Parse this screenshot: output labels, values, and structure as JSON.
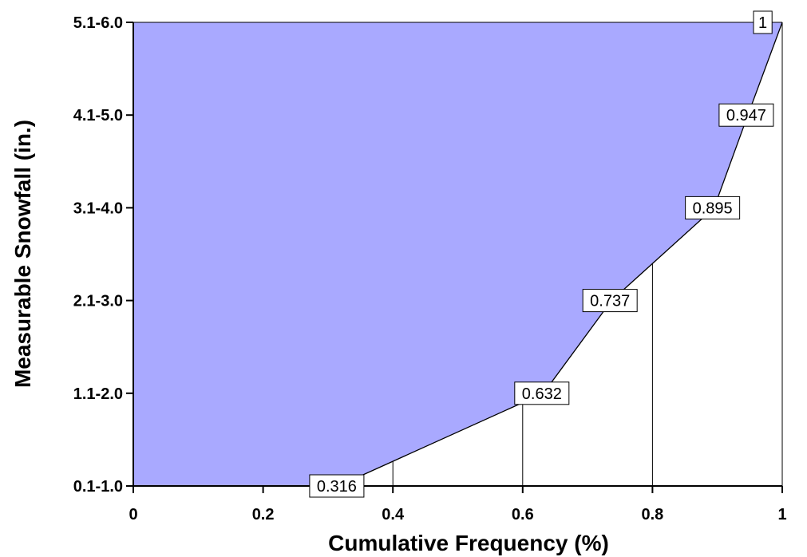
{
  "chart_data": {
    "type": "area",
    "xlabel": "Cumulative Frequency (%)",
    "ylabel": "Measurable Snowfall (in.)",
    "categories": [
      "0.1-1.0",
      "1.1-2.0",
      "2.1-3.0",
      "3.1-4.0",
      "4.1-5.0",
      "5.1-6.0"
    ],
    "values": [
      0.316,
      0.632,
      0.737,
      0.895,
      0.947,
      1
    ],
    "data_labels": [
      "0.316",
      "0.632",
      "0.737",
      "0.895",
      "0.947",
      "1"
    ],
    "xlim": [
      0,
      1
    ],
    "x_ticks": [
      "0",
      "0.2",
      "0.4",
      "0.6",
      "0.8",
      "1"
    ],
    "fill_color": "#a9a9ff",
    "line_color": "#000000",
    "grid": "vertical"
  }
}
